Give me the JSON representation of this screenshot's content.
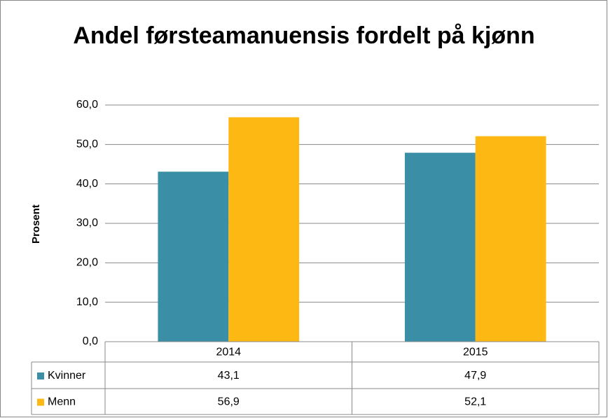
{
  "chart_data": {
    "type": "bar",
    "title": "Andel førsteamanuensis fordelt på kjønn",
    "y_label": "Prosent",
    "categories": [
      "2014",
      "2015"
    ],
    "series": [
      {
        "name": "Kvinner",
        "color": "#3a8fa7",
        "values": [
          43.1,
          47.9
        ],
        "value_labels": [
          "43,1",
          "47,9"
        ]
      },
      {
        "name": "Menn",
        "color": "#fdb813",
        "values": [
          56.9,
          52.1
        ],
        "value_labels": [
          "56,9",
          "52,1"
        ]
      }
    ],
    "ylim": [
      0,
      60
    ],
    "yticks": [
      {
        "value": 0,
        "label": "0,0"
      },
      {
        "value": 10,
        "label": "10,0"
      },
      {
        "value": 20,
        "label": "20,0"
      },
      {
        "value": 30,
        "label": "30,0"
      },
      {
        "value": 40,
        "label": "40,0"
      },
      {
        "value": 50,
        "label": "50,0"
      },
      {
        "value": 60,
        "label": "60,0"
      }
    ],
    "grid": true,
    "data_table": true
  }
}
